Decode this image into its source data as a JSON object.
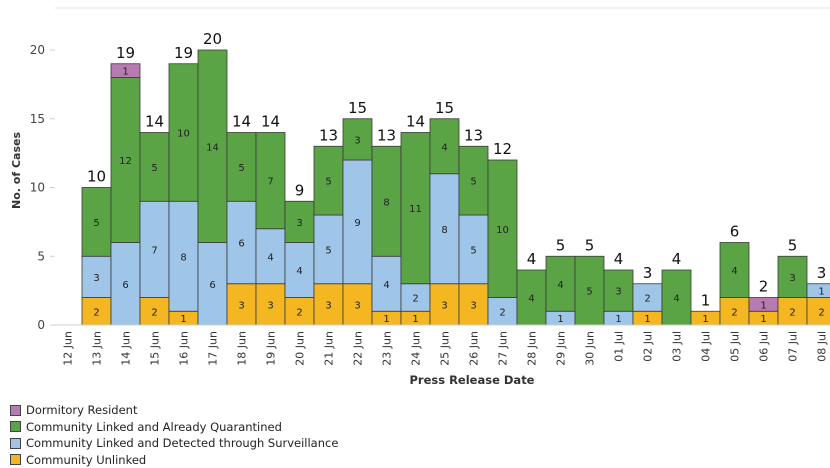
{
  "chart_data": {
    "type": "bar",
    "stacked": true,
    "xlabel": "Press Release Date",
    "ylabel": "No. of Cases",
    "ylim": [
      0,
      22
    ],
    "yticks": [
      0,
      5,
      10,
      15,
      20
    ],
    "grid": false,
    "legend_position": "bottom-left",
    "categories": [
      "12 Jun",
      "13 Jun",
      "14 Jun",
      "15 Jun",
      "16 Jun",
      "17 Jun",
      "18 Jun",
      "19 Jun",
      "20 Jun",
      "21 Jun",
      "22 Jun",
      "23 Jun",
      "24 Jun",
      "25 Jun",
      "26 Jun",
      "27 Jun",
      "28 Jun",
      "29 Jun",
      "30 Jun",
      "01 Jul",
      "02 Jul",
      "03 Jul",
      "04 Jul",
      "05 Jul",
      "06 Jul",
      "07 Jul",
      "08 Jul"
    ],
    "totals": [
      null,
      10,
      19,
      14,
      19,
      20,
      14,
      14,
      9,
      13,
      15,
      13,
      14,
      15,
      13,
      12,
      4,
      5,
      5,
      4,
      3,
      4,
      1,
      6,
      2,
      5,
      3
    ],
    "series": [
      {
        "name": "Community Unlinked",
        "color": "#f4b722",
        "values": [
          0,
          2,
          0,
          2,
          1,
          0,
          3,
          3,
          2,
          3,
          3,
          1,
          1,
          3,
          3,
          0,
          0,
          0,
          0,
          0,
          1,
          0,
          1,
          2,
          1,
          2,
          2
        ]
      },
      {
        "name": "Community Linked and Detected through Surveillance",
        "color": "#9fc5e8",
        "values": [
          0,
          3,
          6,
          7,
          8,
          6,
          6,
          4,
          4,
          5,
          9,
          4,
          2,
          8,
          5,
          2,
          0,
          1,
          0,
          1,
          2,
          0,
          0,
          0,
          0,
          0,
          1
        ]
      },
      {
        "name": "Community Linked and Already Quarantined",
        "color": "#5aa446",
        "values": [
          0,
          5,
          12,
          5,
          10,
          14,
          5,
          7,
          3,
          5,
          3,
          8,
          11,
          4,
          5,
          10,
          4,
          4,
          5,
          3,
          0,
          4,
          0,
          4,
          0,
          3,
          0
        ]
      },
      {
        "name": "Dormitory Resident",
        "color": "#b67bb0",
        "values": [
          0,
          0,
          1,
          0,
          0,
          0,
          0,
          0,
          0,
          0,
          0,
          0,
          0,
          0,
          0,
          0,
          0,
          0,
          0,
          0,
          0,
          0,
          0,
          0,
          1,
          0,
          0
        ]
      }
    ],
    "legend_order": [
      "Dormitory Resident",
      "Community Linked and Already Quarantined",
      "Community Linked and Detected through Surveillance",
      "Community Unlinked"
    ]
  }
}
